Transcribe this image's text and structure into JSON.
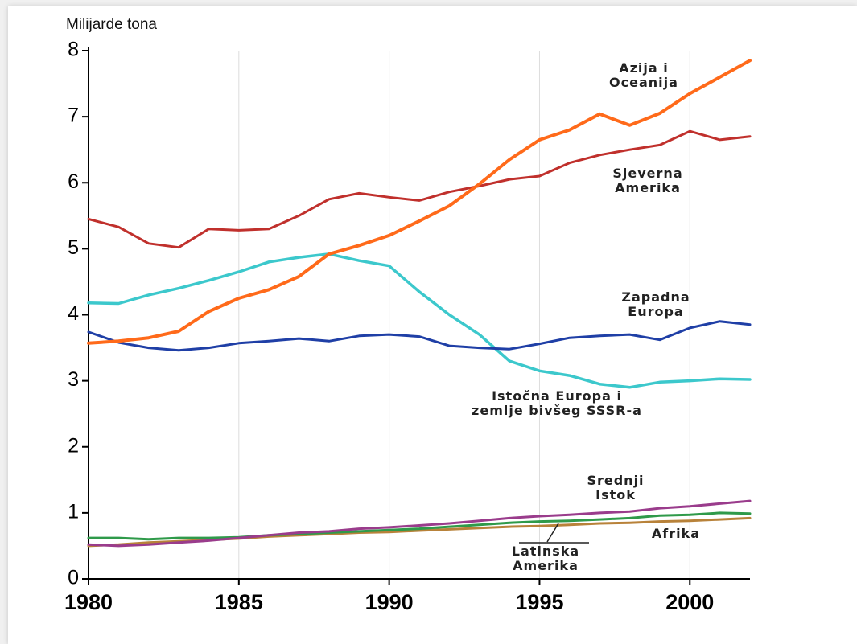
{
  "chart_data": {
    "type": "line",
    "ylabel": "Milijarde tona",
    "xlabel": "",
    "xlim": [
      1980,
      2002
    ],
    "ylim": [
      0,
      8
    ],
    "x_ticks": [
      1980,
      1985,
      1990,
      1995,
      2000
    ],
    "y_ticks": [
      0,
      1,
      2,
      3,
      4,
      5,
      6,
      7,
      8
    ],
    "grid": "vertical",
    "x": [
      1980,
      1981,
      1982,
      1983,
      1984,
      1985,
      1986,
      1987,
      1988,
      1989,
      1990,
      1991,
      1992,
      1993,
      1994,
      1995,
      1996,
      1997,
      1998,
      1999,
      2000,
      2001,
      2002
    ],
    "series": [
      {
        "name": "Azija i Oceanija",
        "color": "#ff6a1a",
        "width": 4,
        "values": [
          3.57,
          3.6,
          3.65,
          3.75,
          4.05,
          4.25,
          4.38,
          4.58,
          4.92,
          5.05,
          5.2,
          5.42,
          5.65,
          5.98,
          6.35,
          6.65,
          6.8,
          7.04,
          6.87,
          7.05,
          7.35,
          7.6,
          7.85
        ]
      },
      {
        "name": "Sjeverna Amerika",
        "color": "#c0302c",
        "width": 3,
        "values": [
          5.45,
          5.33,
          5.08,
          5.02,
          5.3,
          5.28,
          5.3,
          5.5,
          5.75,
          5.84,
          5.78,
          5.73,
          5.86,
          5.95,
          6.05,
          6.1,
          6.3,
          6.42,
          6.5,
          6.57,
          6.78,
          6.65,
          6.7
        ]
      },
      {
        "name": "Zapadna Europa",
        "color": "#1f3fa6",
        "width": 3,
        "values": [
          3.74,
          3.58,
          3.5,
          3.46,
          3.5,
          3.57,
          3.6,
          3.64,
          3.6,
          3.68,
          3.7,
          3.67,
          3.53,
          3.5,
          3.48,
          3.56,
          3.65,
          3.68,
          3.7,
          3.62,
          3.8,
          3.9,
          3.85
        ]
      },
      {
        "name": "Istočna Europa i zemlje bivšeg SSSR-a",
        "color": "#3cc8cc",
        "width": 3.5,
        "values": [
          4.18,
          4.17,
          4.3,
          4.4,
          4.52,
          4.65,
          4.8,
          4.87,
          4.92,
          4.82,
          4.74,
          4.35,
          4.0,
          3.7,
          3.3,
          3.15,
          3.08,
          2.95,
          2.9,
          2.98,
          3.0,
          3.03,
          3.02
        ]
      },
      {
        "name": "Srednji Istok",
        "color": "#9a3c8c",
        "width": 3,
        "values": [
          0.52,
          0.5,
          0.52,
          0.55,
          0.58,
          0.62,
          0.66,
          0.7,
          0.72,
          0.76,
          0.78,
          0.81,
          0.84,
          0.88,
          0.92,
          0.95,
          0.97,
          1.0,
          1.02,
          1.07,
          1.1,
          1.14,
          1.18
        ]
      },
      {
        "name": "Latinska Amerika",
        "color": "#2f9a4a",
        "width": 3,
        "values": [
          0.62,
          0.62,
          0.6,
          0.62,
          0.62,
          0.63,
          0.66,
          0.68,
          0.7,
          0.72,
          0.74,
          0.76,
          0.79,
          0.82,
          0.85,
          0.87,
          0.88,
          0.9,
          0.92,
          0.96,
          0.97,
          1.0,
          0.99
        ]
      },
      {
        "name": "Afrika",
        "color": "#b8823a",
        "width": 3,
        "values": [
          0.5,
          0.52,
          0.55,
          0.57,
          0.59,
          0.61,
          0.64,
          0.66,
          0.68,
          0.7,
          0.71,
          0.73,
          0.75,
          0.77,
          0.79,
          0.8,
          0.82,
          0.84,
          0.85,
          0.87,
          0.88,
          0.9,
          0.92
        ]
      }
    ],
    "annotations": [
      {
        "lines": [
          "Azija i",
          "Oceanija"
        ],
        "series": "Azija i Oceanija"
      },
      {
        "lines": [
          "Sjeverna",
          "Amerika"
        ],
        "series": "Sjeverna Amerika"
      },
      {
        "lines": [
          "Zapadna",
          "Europa"
        ],
        "series": "Zapadna Europa"
      },
      {
        "lines": [
          "Istočna Europa i",
          "zemlje bivšeg SSSR-a"
        ],
        "series": "Istočna Europa i zemlje bivšeg SSSR-a"
      },
      {
        "lines": [
          "Srednji",
          "Istok"
        ],
        "series": "Srednji Istok"
      },
      {
        "lines": [
          "Afrika"
        ],
        "series": "Afrika"
      },
      {
        "lines": [
          "Latinska",
          "Amerika"
        ],
        "series": "Latinska Amerika"
      }
    ]
  }
}
